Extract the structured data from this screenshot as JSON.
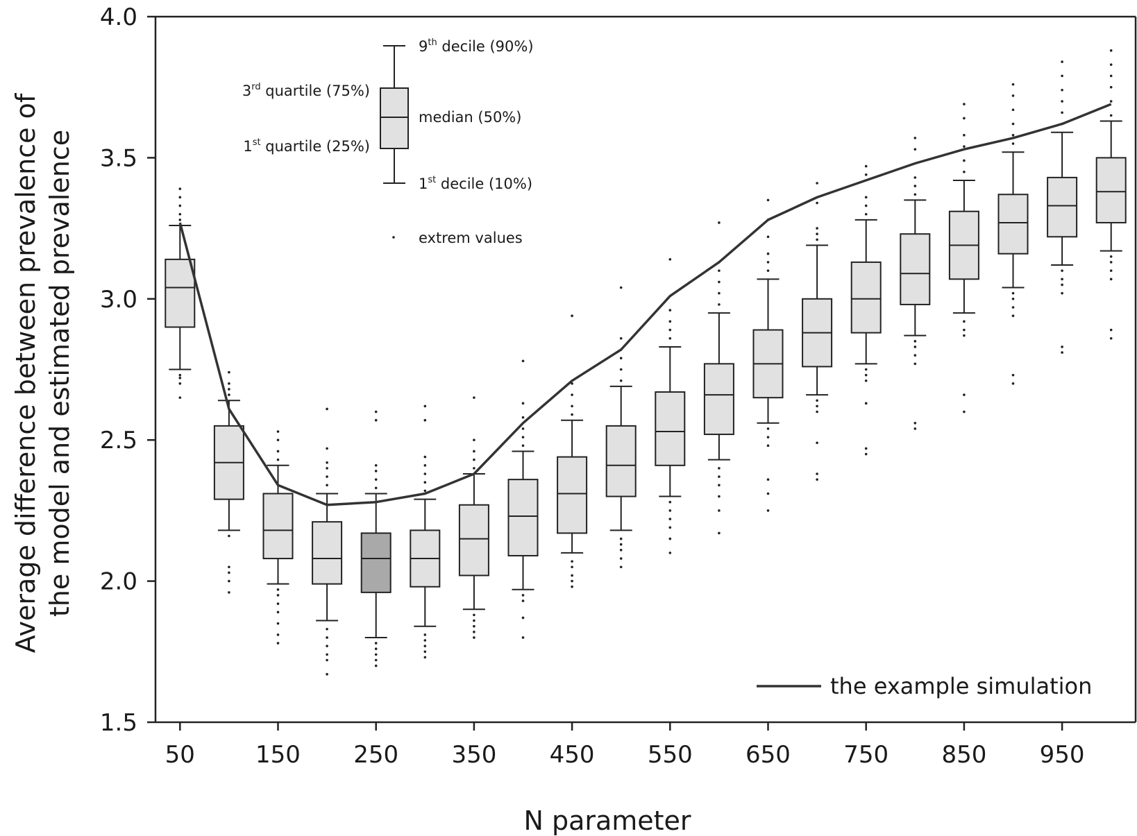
{
  "chart_data": {
    "type": "box",
    "xlabel": "N parameter",
    "ylabel_lines": [
      "Average difference between prevalence of",
      "the model and estimated prevalence"
    ],
    "ylim": [
      1.5,
      4.0
    ],
    "yticks": [
      "1.5",
      "2.0",
      "2.5",
      "3.0",
      "3.5",
      "4.0"
    ],
    "ytick_values": [
      1.5,
      2.0,
      2.5,
      3.0,
      3.5,
      4.0
    ],
    "xlim": [
      25,
      1025
    ],
    "xticks": [
      "50",
      "150",
      "250",
      "350",
      "450",
      "550",
      "650",
      "750",
      "850",
      "950"
    ],
    "xtick_values": [
      50,
      150,
      250,
      350,
      450,
      550,
      650,
      750,
      850,
      950
    ],
    "box_fill": "#e1e1e1",
    "highlight_fill": "#a9a9a9",
    "line_color": "#333333",
    "boxes": [
      {
        "x": 50,
        "p10": 2.75,
        "q1": 2.9,
        "median": 3.04,
        "q3": 3.14,
        "p90": 3.26,
        "highlight": false,
        "outliers": [
          2.65,
          2.7,
          2.72,
          2.73,
          3.28,
          3.3,
          3.33,
          3.36,
          3.39
        ]
      },
      {
        "x": 100,
        "p10": 2.18,
        "q1": 2.29,
        "median": 2.42,
        "q3": 2.55,
        "p90": 2.64,
        "highlight": false,
        "outliers": [
          1.96,
          2.0,
          2.03,
          2.05,
          2.16,
          2.66,
          2.68,
          2.7,
          2.74
        ]
      },
      {
        "x": 150,
        "p10": 1.99,
        "q1": 2.08,
        "median": 2.18,
        "q3": 2.31,
        "p90": 2.41,
        "highlight": false,
        "outliers": [
          1.78,
          1.81,
          1.85,
          1.89,
          1.92,
          1.95,
          1.97,
          2.43,
          2.46,
          2.5,
          2.53
        ]
      },
      {
        "x": 200,
        "p10": 1.86,
        "q1": 1.99,
        "median": 2.08,
        "q3": 2.21,
        "p90": 2.31,
        "highlight": false,
        "outliers": [
          1.67,
          1.72,
          1.74,
          1.77,
          1.8,
          1.83,
          2.34,
          2.37,
          2.4,
          2.42,
          2.47,
          2.61
        ]
      },
      {
        "x": 250,
        "p10": 1.8,
        "q1": 1.96,
        "median": 2.08,
        "q3": 2.17,
        "p90": 2.31,
        "highlight": true,
        "outliers": [
          1.7,
          1.72,
          1.74,
          1.76,
          1.78,
          2.33,
          2.36,
          2.39,
          2.41,
          2.57,
          2.6
        ]
      },
      {
        "x": 300,
        "p10": 1.84,
        "q1": 1.98,
        "median": 2.08,
        "q3": 2.18,
        "p90": 2.29,
        "highlight": false,
        "outliers": [
          1.73,
          1.75,
          1.77,
          1.79,
          1.81,
          2.32,
          2.35,
          2.38,
          2.41,
          2.44,
          2.57,
          2.62
        ]
      },
      {
        "x": 350,
        "p10": 1.9,
        "q1": 2.02,
        "median": 2.15,
        "q3": 2.27,
        "p90": 2.38,
        "highlight": false,
        "outliers": [
          1.8,
          1.82,
          1.84,
          1.86,
          1.88,
          2.4,
          2.43,
          2.46,
          2.5,
          2.65
        ]
      },
      {
        "x": 400,
        "p10": 1.97,
        "q1": 2.09,
        "median": 2.23,
        "q3": 2.36,
        "p90": 2.46,
        "highlight": false,
        "outliers": [
          1.8,
          1.87,
          1.93,
          1.95,
          2.48,
          2.51,
          2.54,
          2.58,
          2.63,
          2.78
        ]
      },
      {
        "x": 450,
        "p10": 2.1,
        "q1": 2.17,
        "median": 2.31,
        "q3": 2.44,
        "p90": 2.57,
        "highlight": false,
        "outliers": [
          1.98,
          2.0,
          2.02,
          2.05,
          2.07,
          2.59,
          2.62,
          2.66,
          2.7,
          2.94
        ]
      },
      {
        "x": 500,
        "p10": 2.18,
        "q1": 2.3,
        "median": 2.41,
        "q3": 2.55,
        "p90": 2.69,
        "highlight": false,
        "outliers": [
          2.05,
          2.08,
          2.11,
          2.13,
          2.15,
          2.71,
          2.75,
          2.79,
          2.82,
          2.86,
          3.04
        ]
      },
      {
        "x": 550,
        "p10": 2.3,
        "q1": 2.41,
        "median": 2.53,
        "q3": 2.67,
        "p90": 2.83,
        "highlight": false,
        "outliers": [
          2.1,
          2.15,
          2.19,
          2.22,
          2.25,
          2.28,
          2.86,
          2.89,
          2.92,
          2.96,
          3.14
        ]
      },
      {
        "x": 600,
        "p10": 2.43,
        "q1": 2.52,
        "median": 2.66,
        "q3": 2.77,
        "p90": 2.95,
        "highlight": false,
        "outliers": [
          2.17,
          2.25,
          2.3,
          2.34,
          2.37,
          2.4,
          2.98,
          3.02,
          3.06,
          3.1,
          3.13,
          3.27
        ]
      },
      {
        "x": 650,
        "p10": 2.56,
        "q1": 2.65,
        "median": 2.77,
        "q3": 2.89,
        "p90": 3.07,
        "highlight": false,
        "outliers": [
          2.25,
          2.31,
          2.36,
          2.48,
          2.51,
          2.54,
          3.1,
          3.13,
          3.16,
          3.22,
          3.28,
          3.35
        ]
      },
      {
        "x": 700,
        "p10": 2.66,
        "q1": 2.76,
        "median": 2.88,
        "q3": 3.0,
        "p90": 3.19,
        "highlight": false,
        "outliers": [
          2.36,
          2.38,
          2.49,
          2.6,
          2.62,
          2.64,
          3.21,
          3.23,
          3.25,
          3.34,
          3.41
        ]
      },
      {
        "x": 750,
        "p10": 2.77,
        "q1": 2.88,
        "median": 3.0,
        "q3": 3.13,
        "p90": 3.28,
        "highlight": false,
        "outliers": [
          2.45,
          2.47,
          2.63,
          2.71,
          2.73,
          2.75,
          3.3,
          3.33,
          3.36,
          3.44,
          3.47
        ]
      },
      {
        "x": 800,
        "p10": 2.87,
        "q1": 2.98,
        "median": 3.09,
        "q3": 3.23,
        "p90": 3.35,
        "highlight": false,
        "outliers": [
          2.54,
          2.56,
          2.77,
          2.8,
          2.83,
          2.85,
          3.37,
          3.4,
          3.43,
          3.53,
          3.57
        ]
      },
      {
        "x": 850,
        "p10": 2.95,
        "q1": 3.07,
        "median": 3.19,
        "q3": 3.31,
        "p90": 3.42,
        "highlight": false,
        "outliers": [
          2.6,
          2.66,
          2.87,
          2.89,
          2.92,
          3.45,
          3.49,
          3.54,
          3.58,
          3.64,
          3.69
        ]
      },
      {
        "x": 900,
        "p10": 3.04,
        "q1": 3.16,
        "median": 3.27,
        "q3": 3.37,
        "p90": 3.52,
        "highlight": false,
        "outliers": [
          2.7,
          2.73,
          2.94,
          2.97,
          3.0,
          3.02,
          3.55,
          3.58,
          3.62,
          3.67,
          3.72,
          3.76
        ]
      },
      {
        "x": 950,
        "p10": 3.12,
        "q1": 3.22,
        "median": 3.33,
        "q3": 3.43,
        "p90": 3.59,
        "highlight": false,
        "outliers": [
          2.81,
          2.83,
          3.02,
          3.05,
          3.07,
          3.1,
          3.62,
          3.66,
          3.7,
          3.74,
          3.79,
          3.84
        ]
      },
      {
        "x": 1000,
        "p10": 3.17,
        "q1": 3.27,
        "median": 3.38,
        "q3": 3.5,
        "p90": 3.63,
        "highlight": false,
        "outliers": [
          2.86,
          2.89,
          3.07,
          3.1,
          3.13,
          3.15,
          3.65,
          3.7,
          3.75,
          3.79,
          3.83,
          3.88
        ]
      }
    ],
    "series": [
      {
        "name": "the example simulation",
        "x": [
          50,
          100,
          150,
          200,
          250,
          300,
          350,
          400,
          450,
          500,
          550,
          600,
          650,
          700,
          750,
          800,
          850,
          900,
          950,
          1000
        ],
        "y": [
          3.27,
          2.61,
          2.34,
          2.27,
          2.28,
          2.31,
          2.38,
          2.56,
          2.71,
          2.82,
          3.01,
          3.13,
          3.28,
          3.36,
          3.42,
          3.48,
          3.53,
          3.57,
          3.62,
          3.69
        ]
      }
    ],
    "legend": {
      "p90": {
        "prefix": "9",
        "sup": "th",
        "rest": " decile (90%)"
      },
      "q3": {
        "prefix": "3",
        "sup": "rd",
        "rest": " quartile (75%)"
      },
      "median": {
        "text": "median (50%)"
      },
      "q1": {
        "prefix": "1",
        "sup": "st",
        "rest": " quartile (25%)"
      },
      "p10": {
        "prefix": "1",
        "sup": "st",
        "rest": " decile (10%)"
      },
      "extreme": {
        "text": "extrem values"
      }
    },
    "grid": false
  }
}
